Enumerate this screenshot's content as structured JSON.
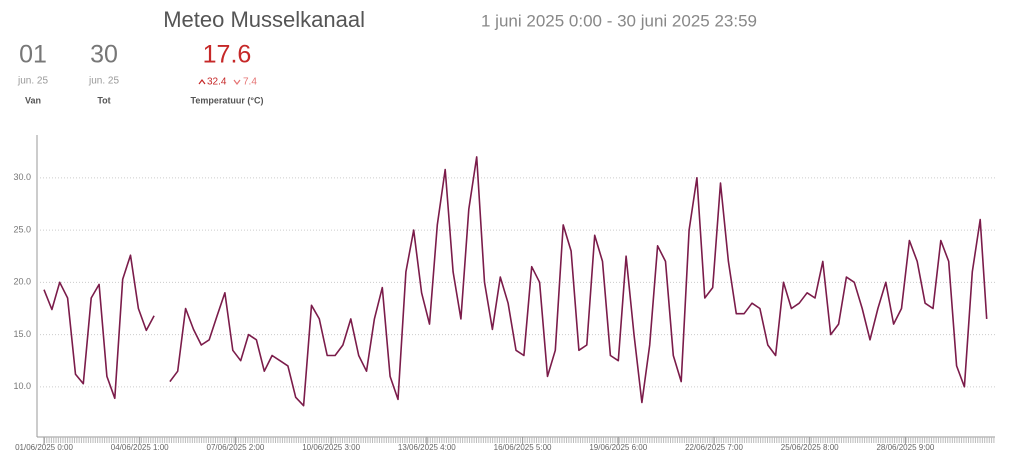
{
  "header": {
    "title": "Meteo Musselkanaal",
    "subtitle": "1 juni 2025 0:00 - 30 juni 2025 23:59",
    "stats": [
      {
        "value": "01",
        "sub": "jun. 25",
        "label": "Van"
      },
      {
        "value": "30",
        "sub": "jun. 25",
        "label": "Tot"
      }
    ],
    "temperature": {
      "value": "17.6",
      "max": "32.4",
      "min": "7.4",
      "label": "Temperatuur (°C)"
    }
  },
  "chart_data": {
    "type": "line",
    "color": "#7b1c4a",
    "grid": true,
    "ylim": [
      5.2,
      34.1
    ],
    "yticks": [
      {
        "value": 10,
        "label": "10.0"
      },
      {
        "value": 15,
        "label": "15.0"
      },
      {
        "value": 20,
        "label": "20.0"
      },
      {
        "value": 25,
        "label": "25.0"
      },
      {
        "value": 30,
        "label": "30.0"
      }
    ],
    "xlim": [
      "01/06/2025 0:00",
      "30/06/2025 23:59"
    ],
    "xticks": [
      "01/06/2025 0:00",
      "04/06/2025 1:00",
      "07/06/2025 2:00",
      "10/06/2025 3:00",
      "13/06/2025 4:00",
      "16/06/2025 5:00",
      "19/06/2025 6:00",
      "22/06/2025 7:00",
      "25/06/2025 8:00",
      "28/06/2025 9:00"
    ],
    "x": [
      "01/06/2025 0:00",
      "01/06/2025 6:00",
      "01/06/2025 12:00",
      "01/06/2025 18:00",
      "02/06/2025 0:00",
      "02/06/2025 6:00",
      "02/06/2025 12:00",
      "02/06/2025 18:00",
      "03/06/2025 0:00",
      "03/06/2025 6:00",
      "03/06/2025 12:00",
      "03/06/2025 18:00",
      "04/06/2025 0:00",
      "04/06/2025 6:00",
      "04/06/2025 12:00",
      "04/06/2025 18:00",
      "05/06/2025 0:00",
      "05/06/2025 6:00",
      "05/06/2025 12:00",
      "05/06/2025 18:00",
      "06/06/2025 0:00",
      "06/06/2025 6:00",
      "06/06/2025 12:00",
      "06/06/2025 18:00",
      "07/06/2025 0:00",
      "07/06/2025 6:00",
      "07/06/2025 12:00",
      "07/06/2025 18:00",
      "08/06/2025 0:00",
      "08/06/2025 6:00",
      "08/06/2025 12:00",
      "08/06/2025 18:00",
      "09/06/2025 0:00",
      "09/06/2025 6:00",
      "09/06/2025 12:00",
      "09/06/2025 18:00",
      "10/06/2025 0:00",
      "10/06/2025 6:00",
      "10/06/2025 12:00",
      "10/06/2025 18:00",
      "11/06/2025 0:00",
      "11/06/2025 6:00",
      "11/06/2025 12:00",
      "11/06/2025 18:00",
      "12/06/2025 0:00",
      "12/06/2025 6:00",
      "12/06/2025 12:00",
      "12/06/2025 18:00",
      "13/06/2025 0:00",
      "13/06/2025 6:00",
      "13/06/2025 12:00",
      "13/06/2025 18:00",
      "14/06/2025 0:00",
      "14/06/2025 6:00",
      "14/06/2025 12:00",
      "14/06/2025 18:00",
      "15/06/2025 0:00",
      "15/06/2025 6:00",
      "15/06/2025 12:00",
      "15/06/2025 18:00",
      "16/06/2025 0:00",
      "16/06/2025 6:00",
      "16/06/2025 12:00",
      "16/06/2025 18:00",
      "17/06/2025 0:00",
      "17/06/2025 6:00",
      "17/06/2025 12:00",
      "17/06/2025 18:00",
      "18/06/2025 0:00",
      "18/06/2025 6:00",
      "18/06/2025 12:00",
      "18/06/2025 18:00",
      "19/06/2025 0:00",
      "19/06/2025 6:00",
      "19/06/2025 12:00",
      "19/06/2025 18:00",
      "20/06/2025 0:00",
      "20/06/2025 6:00",
      "20/06/2025 12:00",
      "20/06/2025 18:00",
      "21/06/2025 0:00",
      "21/06/2025 6:00",
      "21/06/2025 12:00",
      "21/06/2025 18:00",
      "22/06/2025 0:00",
      "22/06/2025 6:00",
      "22/06/2025 12:00",
      "22/06/2025 18:00",
      "23/06/2025 0:00",
      "23/06/2025 6:00",
      "23/06/2025 12:00",
      "23/06/2025 18:00",
      "24/06/2025 0:00",
      "24/06/2025 6:00",
      "24/06/2025 12:00",
      "24/06/2025 18:00",
      "25/06/2025 0:00",
      "25/06/2025 6:00",
      "25/06/2025 12:00",
      "25/06/2025 18:00",
      "26/06/2025 0:00",
      "26/06/2025 6:00",
      "26/06/2025 12:00",
      "26/06/2025 18:00",
      "27/06/2025 0:00",
      "27/06/2025 6:00",
      "27/06/2025 12:00",
      "27/06/2025 18:00",
      "28/06/2025 0:00",
      "28/06/2025 6:00",
      "28/06/2025 12:00",
      "28/06/2025 18:00",
      "29/06/2025 0:00",
      "29/06/2025 6:00",
      "29/06/2025 12:00",
      "29/06/2025 18:00",
      "30/06/2025 0:00",
      "30/06/2025 6:00",
      "30/06/2025 12:00",
      "30/06/2025 18:00",
      "30/06/2025 23:00"
    ],
    "series": [
      {
        "values": [
          19.3,
          17.4,
          20.0,
          18.5,
          11.2,
          10.3,
          18.5,
          19.8,
          11.0,
          8.9,
          20.3,
          22.6,
          17.5,
          15.4,
          16.8,
          null,
          10.5,
          11.5,
          17.5,
          15.5,
          14.0,
          14.5,
          16.8,
          19.0,
          13.5,
          12.5,
          15.0,
          14.5,
          11.5,
          13.0,
          12.5,
          12.0,
          9.0,
          8.2,
          17.8,
          16.5,
          13.0,
          13.0,
          14.0,
          16.5,
          13.0,
          11.5,
          16.5,
          19.5,
          11.0,
          8.8,
          21.0,
          25.0,
          19.0,
          16.0,
          25.5,
          30.8,
          21.0,
          16.5,
          27.0,
          32.0,
          20.0,
          15.5,
          20.5,
          18.0,
          13.5,
          13.0,
          21.5,
          20.0,
          11.0,
          13.5,
          25.5,
          23.0,
          13.5,
          14.0,
          24.5,
          22.0,
          13.0,
          12.5,
          22.5,
          15.0,
          8.5,
          14.0,
          23.5,
          22.0,
          13.0,
          10.5,
          25.0,
          30.0,
          18.5,
          19.5,
          29.5,
          22.0,
          17.0,
          17.0,
          18.0,
          17.5,
          14.0,
          13.0,
          20.0,
          17.5,
          18.0,
          19.0,
          18.5,
          22.0,
          15.0,
          16.0,
          20.5,
          20.0,
          17.5,
          14.5,
          17.5,
          20.0,
          16.0,
          17.5,
          24.0,
          22.0,
          18.0,
          17.5,
          24.0,
          22.0,
          12.0,
          10.0,
          21.0,
          26.0,
          16.5
        ]
      }
    ]
  }
}
